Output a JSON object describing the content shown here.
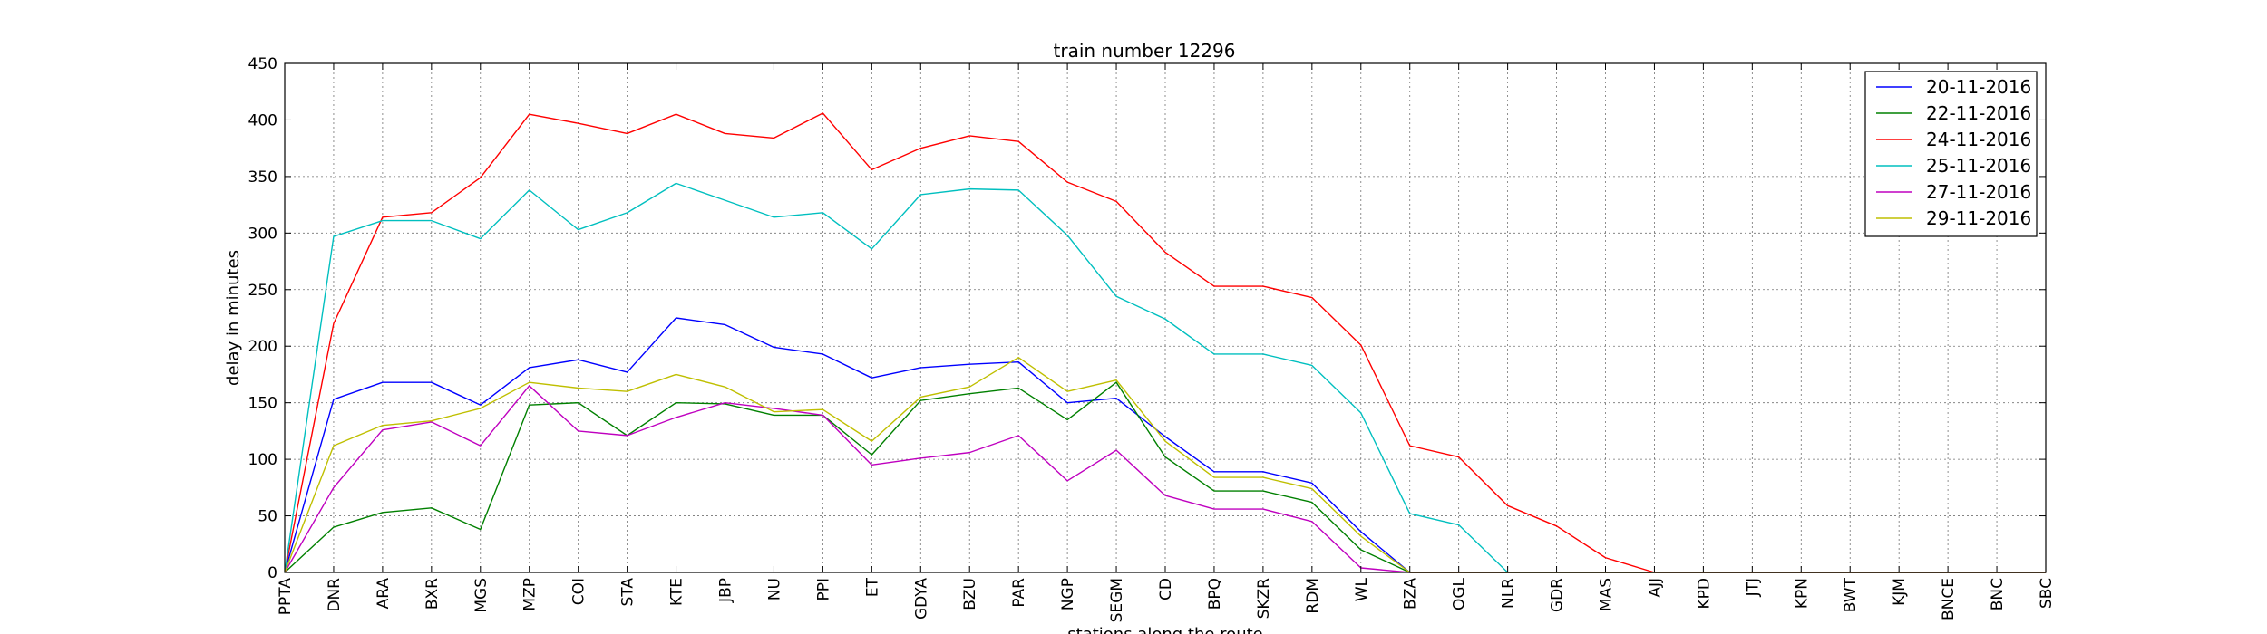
{
  "chart_data": {
    "type": "line",
    "title": "train number 12296",
    "xlabel": "stations along the route",
    "ylabel": "delay in minutes",
    "ylim": [
      0,
      450
    ],
    "yticks": [
      0,
      50,
      100,
      150,
      200,
      250,
      300,
      350,
      400,
      450
    ],
    "grid": true,
    "legend_position": "top-right",
    "categories": [
      "PPTA",
      "DNR",
      "ARA",
      "BXR",
      "MGS",
      "MZP",
      "COI",
      "STA",
      "KTE",
      "JBP",
      "NU",
      "PPI",
      "ET",
      "GDYA",
      "BZU",
      "PAR",
      "NGP",
      "SEGM",
      "CD",
      "BPQ",
      "SKZR",
      "RDM",
      "WL",
      "BZA",
      "OGL",
      "NLR",
      "GDR",
      "MAS",
      "AJJ",
      "KPD",
      "JTJ",
      "KPN",
      "BWT",
      "KJM",
      "BNCE",
      "BNC",
      "SBC"
    ],
    "series": [
      {
        "name": "20-11-2016",
        "color": "#0000ff",
        "values": [
          0,
          153,
          168,
          168,
          148,
          181,
          188,
          177,
          225,
          219,
          199,
          193,
          172,
          181,
          184,
          186,
          150,
          154,
          120,
          89,
          89,
          79,
          36,
          0,
          0,
          0,
          0,
          0,
          0,
          0,
          0,
          0,
          0,
          0,
          0,
          0,
          0
        ]
      },
      {
        "name": "22-11-2016",
        "color": "#008000",
        "values": [
          0,
          40,
          53,
          57,
          38,
          148,
          150,
          121,
          150,
          149,
          139,
          139,
          104,
          152,
          158,
          163,
          135,
          168,
          102,
          72,
          72,
          62,
          20,
          0,
          0,
          0,
          0,
          0,
          0,
          0,
          0,
          0,
          0,
          0,
          0,
          0,
          0
        ]
      },
      {
        "name": "24-11-2016",
        "color": "#ff0000",
        "values": [
          0,
          220,
          314,
          318,
          349,
          405,
          397,
          388,
          405,
          388,
          384,
          406,
          356,
          375,
          386,
          381,
          345,
          328,
          283,
          253,
          253,
          243,
          201,
          112,
          102,
          59,
          41,
          13,
          0,
          0,
          0,
          0,
          0,
          0,
          0,
          0,
          0
        ]
      },
      {
        "name": "25-11-2016",
        "color": "#00bfbf",
        "values": [
          0,
          297,
          311,
          311,
          295,
          338,
          303,
          318,
          344,
          329,
          314,
          318,
          286,
          334,
          339,
          338,
          298,
          244,
          224,
          193,
          193,
          183,
          141,
          52,
          42,
          0,
          0,
          0,
          0,
          0,
          0,
          0,
          0,
          0,
          0,
          0,
          0
        ]
      },
      {
        "name": "27-11-2016",
        "color": "#bf00bf",
        "values": [
          0,
          75,
          126,
          133,
          112,
          165,
          125,
          121,
          137,
          150,
          145,
          139,
          95,
          101,
          106,
          121,
          81,
          108,
          68,
          56,
          56,
          45,
          4,
          0,
          0,
          0,
          0,
          0,
          0,
          0,
          0,
          0,
          0,
          0,
          0,
          0,
          0
        ]
      },
      {
        "name": "29-11-2016",
        "color": "#bfbf00",
        "values": [
          0,
          112,
          130,
          134,
          145,
          168,
          163,
          160,
          175,
          164,
          142,
          144,
          116,
          155,
          164,
          190,
          160,
          170,
          116,
          84,
          84,
          74,
          32,
          0,
          0,
          0,
          0,
          0,
          0,
          0,
          0,
          0,
          0,
          0,
          0,
          0,
          0
        ]
      }
    ]
  }
}
